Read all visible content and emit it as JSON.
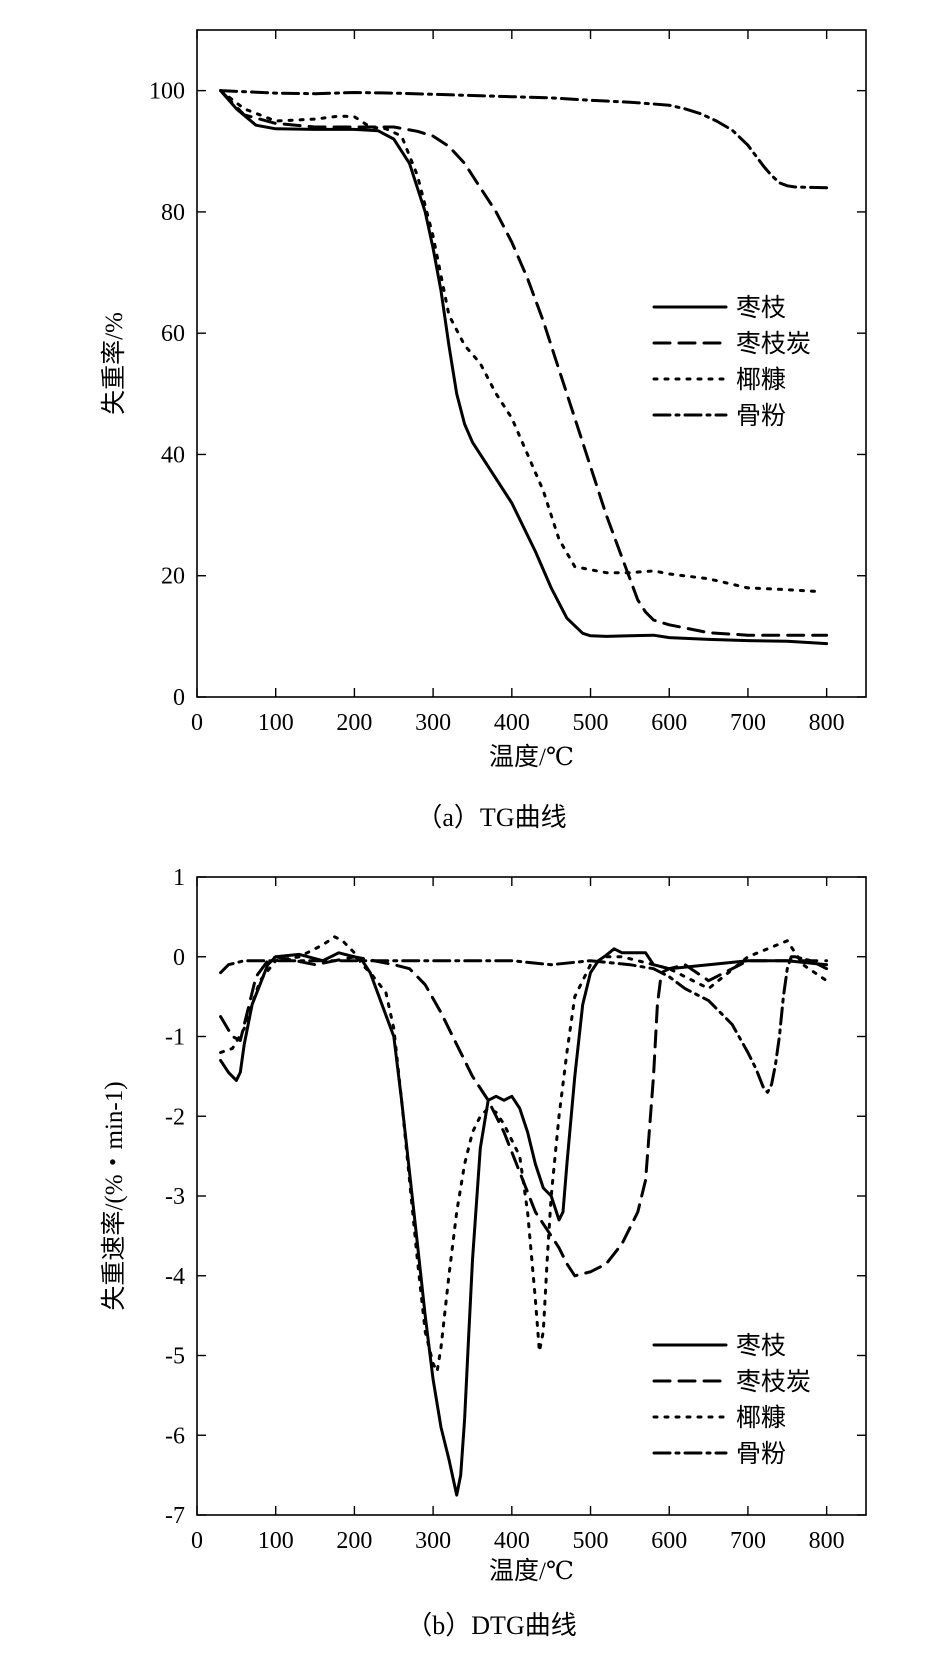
{
  "chart_data": [
    {
      "type": "line",
      "caption": "（a）TG曲线",
      "xlabel": "温度/℃",
      "ylabel": "失重率/%",
      "xlim": [
        0,
        850
      ],
      "ylim": [
        0,
        110
      ],
      "xticks": [
        0,
        100,
        200,
        300,
        400,
        500,
        600,
        700,
        800
      ],
      "yticks": [
        0,
        20,
        40,
        60,
        80,
        100
      ],
      "legend_position": "right-middle",
      "series": [
        {
          "name": "枣枝",
          "style": "solid",
          "color": "#000000",
          "x": [
            30,
            50,
            75,
            100,
            150,
            200,
            230,
            250,
            270,
            290,
            300,
            310,
            320,
            330,
            340,
            350,
            370,
            400,
            430,
            450,
            470,
            490,
            500,
            520,
            550,
            580,
            600,
            650,
            700,
            750,
            800
          ],
          "y": [
            100,
            97,
            94.3,
            93.7,
            93.6,
            93.6,
            93.4,
            92,
            88,
            80,
            74,
            67,
            58,
            50,
            45,
            42,
            38,
            32,
            24,
            18,
            13,
            10.5,
            10.1,
            10,
            10.1,
            10.2,
            9.8,
            9.5,
            9.3,
            9.2,
            8.8
          ]
        },
        {
          "name": "枣枝炭",
          "style": "dashed",
          "color": "#000000",
          "x": [
            30,
            60,
            100,
            150,
            200,
            250,
            280,
            300,
            320,
            340,
            360,
            380,
            400,
            420,
            440,
            460,
            480,
            500,
            520,
            540,
            560,
            570,
            580,
            590,
            600,
            650,
            700,
            750,
            800
          ],
          "y": [
            100,
            96,
            94.6,
            94,
            94,
            94,
            93.3,
            92.5,
            90.8,
            88,
            84,
            80,
            75,
            69,
            62,
            54,
            46,
            38,
            30,
            23,
            16,
            14,
            12.7,
            12.3,
            11.9,
            10.6,
            10.2,
            10.2,
            10.2
          ]
        },
        {
          "name": "椰糠",
          "style": "dotted",
          "color": "#000000",
          "x": [
            30,
            60,
            100,
            150,
            180,
            200,
            220,
            240,
            260,
            280,
            300,
            320,
            340,
            360,
            380,
            400,
            420,
            440,
            460,
            480,
            500,
            520,
            550,
            580,
            600,
            650,
            700,
            750,
            790
          ],
          "y": [
            100,
            97,
            95,
            95.3,
            95.8,
            95.7,
            94,
            93.7,
            92.5,
            86,
            76,
            63,
            58,
            55,
            50,
            46,
            40,
            34,
            26,
            21.5,
            21,
            20.5,
            20.5,
            20.8,
            20.3,
            19.5,
            18,
            17.7,
            17.4
          ]
        },
        {
          "name": "骨粉",
          "style": "dashdot",
          "color": "#000000",
          "x": [
            30,
            100,
            150,
            200,
            250,
            300,
            350,
            400,
            450,
            500,
            550,
            600,
            620,
            640,
            660,
            680,
            700,
            720,
            730,
            740,
            750,
            760,
            800
          ],
          "y": [
            100,
            99.6,
            99.5,
            99.7,
            99.6,
            99.4,
            99.2,
            99,
            98.8,
            98.4,
            98.1,
            97.6,
            97,
            96.2,
            95,
            93.5,
            91,
            87.5,
            86,
            84.8,
            84.3,
            84.1,
            84
          ]
        }
      ]
    },
    {
      "type": "line",
      "caption": "（b）DTG曲线",
      "xlabel": "温度/℃",
      "ylabel": "失重速率/(%・min-1)",
      "xlim": [
        0,
        850
      ],
      "ylim": [
        -7,
        1
      ],
      "xticks": [
        0,
        100,
        200,
        300,
        400,
        500,
        600,
        700,
        800
      ],
      "yticks": [
        1,
        0,
        -1,
        -2,
        -3,
        -4,
        -5,
        -6,
        -7
      ],
      "legend_position": "bottom-right",
      "series": [
        {
          "name": "枣枝",
          "style": "solid",
          "color": "#000000",
          "x": [
            30,
            40,
            50,
            55,
            60,
            70,
            90,
            100,
            130,
            160,
            180,
            200,
            210,
            220,
            235,
            250,
            260,
            270,
            280,
            290,
            300,
            310,
            320,
            330,
            335,
            340,
            345,
            350,
            360,
            370,
            380,
            390,
            400,
            410,
            420,
            430,
            440,
            450,
            460,
            465,
            470,
            480,
            490,
            500,
            510,
            520,
            530,
            540,
            560,
            570,
            580,
            600,
            650,
            700,
            750,
            800
          ],
          "y": [
            -1.3,
            -1.45,
            -1.55,
            -1.45,
            -1.1,
            -0.6,
            -0.1,
            0,
            0.03,
            -0.05,
            0.05,
            0,
            -0.05,
            -0.2,
            -0.6,
            -1.0,
            -1.8,
            -2.7,
            -3.6,
            -4.5,
            -5.3,
            -5.9,
            -6.3,
            -6.75,
            -6.5,
            -5.8,
            -4.8,
            -3.8,
            -2.4,
            -1.8,
            -1.75,
            -1.8,
            -1.75,
            -1.9,
            -2.2,
            -2.6,
            -2.9,
            -3.0,
            -3.3,
            -3.2,
            -2.6,
            -1.5,
            -0.6,
            -0.2,
            -0.05,
            0.02,
            0.1,
            0.05,
            0.05,
            0.05,
            -0.1,
            -0.15,
            -0.1,
            -0.05,
            -0.05,
            -0.1
          ]
        },
        {
          "name": "枣枝炭",
          "style": "dashed",
          "color": "#000000",
          "x": [
            30,
            45,
            55,
            65,
            75,
            90,
            100,
            150,
            200,
            250,
            270,
            290,
            310,
            330,
            350,
            370,
            390,
            410,
            430,
            450,
            460,
            470,
            480,
            500,
            520,
            540,
            560,
            570,
            580,
            585,
            590,
            600,
            620,
            650,
            700,
            750,
            800
          ],
          "y": [
            -0.75,
            -1.0,
            -1.05,
            -0.65,
            -0.25,
            -0.05,
            0,
            -0.1,
            0,
            -0.1,
            -0.15,
            -0.35,
            -0.7,
            -1.1,
            -1.5,
            -1.8,
            -2.2,
            -2.7,
            -3.2,
            -3.5,
            -3.65,
            -3.85,
            -4.0,
            -3.95,
            -3.85,
            -3.6,
            -3.2,
            -2.8,
            -1.5,
            -0.6,
            -0.2,
            -0.15,
            -0.1,
            -0.3,
            -0.05,
            -0.05,
            -0.05
          ]
        },
        {
          "name": "椰糠",
          "style": "dotted",
          "color": "#000000",
          "x": [
            30,
            45,
            60,
            80,
            100,
            130,
            160,
            175,
            185,
            200,
            210,
            220,
            240,
            250,
            260,
            270,
            280,
            290,
            300,
            305,
            310,
            320,
            330,
            340,
            350,
            360,
            370,
            380,
            390,
            400,
            410,
            420,
            430,
            435,
            440,
            445,
            450,
            460,
            470,
            480,
            490,
            500,
            520,
            540,
            560,
            600,
            650,
            700,
            750,
            770,
            800
          ],
          "y": [
            -1.2,
            -1.15,
            -0.9,
            -0.3,
            -0.05,
            0,
            0.15,
            0.25,
            0.2,
            0.05,
            -0.1,
            -0.2,
            -0.45,
            -0.9,
            -1.8,
            -2.8,
            -3.8,
            -4.7,
            -5.1,
            -5.2,
            -4.9,
            -4.0,
            -3.2,
            -2.6,
            -2.2,
            -2.0,
            -1.9,
            -1.95,
            -2.1,
            -2.3,
            -2.5,
            -3.2,
            -4.3,
            -4.95,
            -4.7,
            -3.8,
            -3.0,
            -2.0,
            -1.2,
            -0.5,
            -0.3,
            -0.1,
            0,
            0,
            -0.05,
            -0.15,
            -0.4,
            0,
            0.2,
            -0.1,
            -0.3
          ]
        },
        {
          "name": "骨粉",
          "style": "dashdot",
          "color": "#000000",
          "x": [
            30,
            40,
            60,
            100,
            200,
            300,
            350,
            400,
            450,
            500,
            550,
            580,
            600,
            620,
            650,
            680,
            700,
            710,
            720,
            725,
            730,
            735,
            740,
            745,
            750,
            755,
            760,
            780,
            800
          ],
          "y": [
            -0.2,
            -0.1,
            -0.05,
            -0.05,
            -0.05,
            -0.05,
            -0.05,
            -0.05,
            -0.1,
            -0.05,
            -0.1,
            -0.15,
            -0.25,
            -0.4,
            -0.55,
            -0.85,
            -1.2,
            -1.4,
            -1.65,
            -1.7,
            -1.6,
            -1.35,
            -1.0,
            -0.5,
            -0.15,
            0,
            0,
            -0.05,
            -0.15
          ]
        }
      ]
    }
  ]
}
